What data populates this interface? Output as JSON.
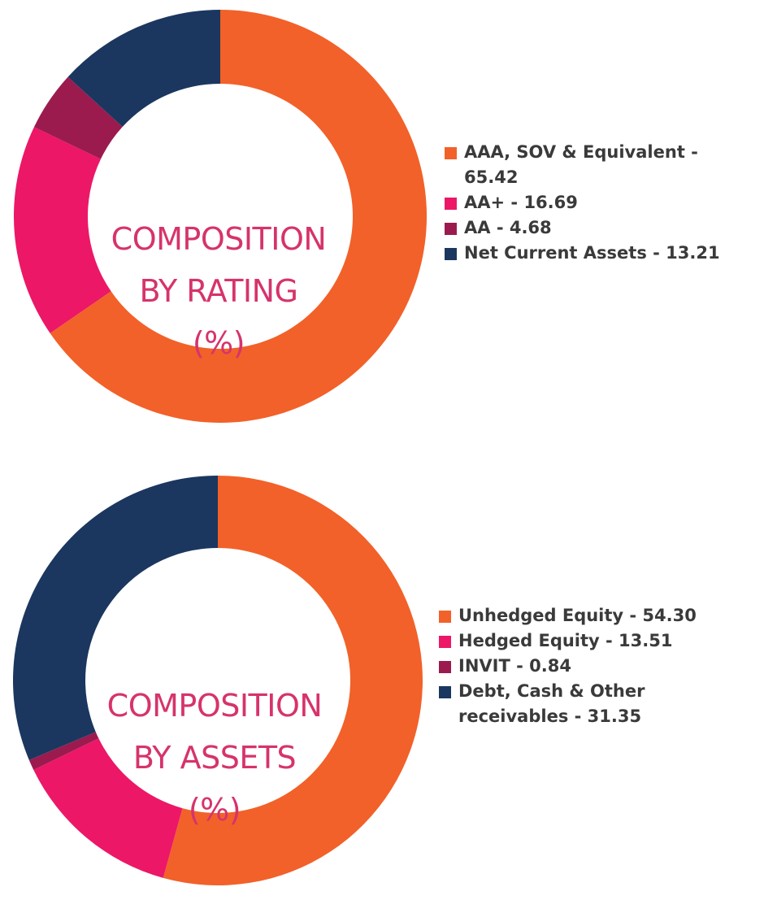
{
  "colors": {
    "orange": "#f26129",
    "pink": "#ec1767",
    "maroon": "#9b1b4f",
    "navy": "#1b375f",
    "title_pink": "#d6336c"
  },
  "chart_data": [
    {
      "type": "pie",
      "variant": "donut",
      "title_lines": [
        "COMPOSITION",
        "BY RATING",
        "(%)"
      ],
      "categories": [
        "AAA, SOV & Equivalent",
        "AA+",
        "AA",
        "Net Current Assets"
      ],
      "values": [
        65.42,
        16.69,
        4.68,
        13.21
      ],
      "legend_labels": [
        "AAA, SOV & Equivalent - 65.42",
        "AA+ - 16.69",
        "AA - 4.68",
        "Net Current Assets - 13.21"
      ],
      "colors": [
        "#f26129",
        "#ec1767",
        "#9b1b4f",
        "#1b375f"
      ],
      "legend_position": "right"
    },
    {
      "type": "pie",
      "variant": "donut",
      "title_lines": [
        "COMPOSITION",
        "BY ASSETS",
        "(%)"
      ],
      "categories": [
        "Unhedged Equity",
        "Hedged Equity",
        "INVIT",
        "Debt, Cash & Other receivables"
      ],
      "values": [
        54.3,
        13.51,
        0.84,
        31.35
      ],
      "legend_labels": [
        "Unhedged Equity - 54.30",
        "Hedged Equity - 13.51",
        "INVIT - 0.84",
        "Debt, Cash & Other receivables - 31.35"
      ],
      "colors": [
        "#f26129",
        "#ec1767",
        "#9b1b4f",
        "#1b375f"
      ],
      "legend_position": "right"
    }
  ]
}
